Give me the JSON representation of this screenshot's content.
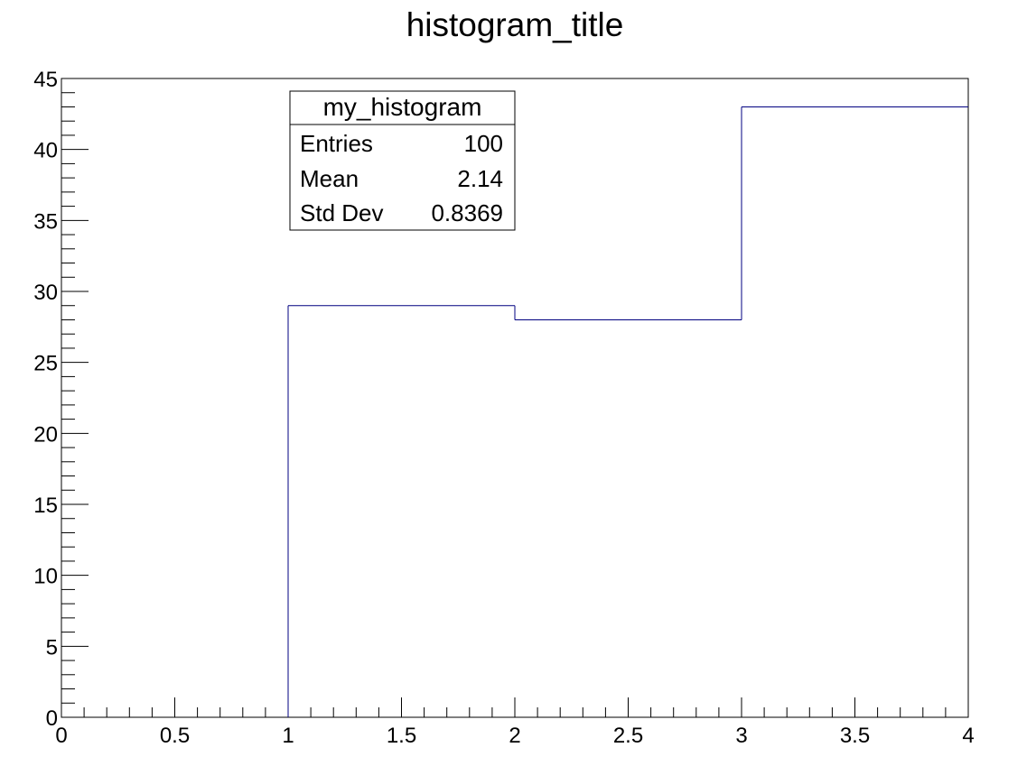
{
  "chart_data": {
    "type": "histogram",
    "title": "histogram_title",
    "xlabel": "",
    "ylabel": "",
    "xlim": [
      0,
      4
    ],
    "ylim": [
      0,
      45
    ],
    "bins": [
      {
        "x_low": 0,
        "x_high": 1,
        "value": 0
      },
      {
        "x_low": 1,
        "x_high": 2,
        "value": 29
      },
      {
        "x_low": 2,
        "x_high": 3,
        "value": 28
      },
      {
        "x_low": 3,
        "x_high": 4,
        "value": 43
      }
    ],
    "x_ticks": [
      "0",
      "0.5",
      "1",
      "1.5",
      "2",
      "2.5",
      "3",
      "3.5",
      "4"
    ],
    "y_ticks": [
      "0",
      "5",
      "10",
      "15",
      "20",
      "25",
      "30",
      "35",
      "40",
      "45"
    ],
    "line_color": "#000080",
    "grid": false,
    "legend_position": "upper-left",
    "stats_box": {
      "name": "my_histogram",
      "rows": [
        {
          "label": "Entries",
          "value": "100"
        },
        {
          "label": "Mean",
          "value": "2.14"
        },
        {
          "label": "Std Dev",
          "value": "0.8369"
        }
      ]
    }
  }
}
